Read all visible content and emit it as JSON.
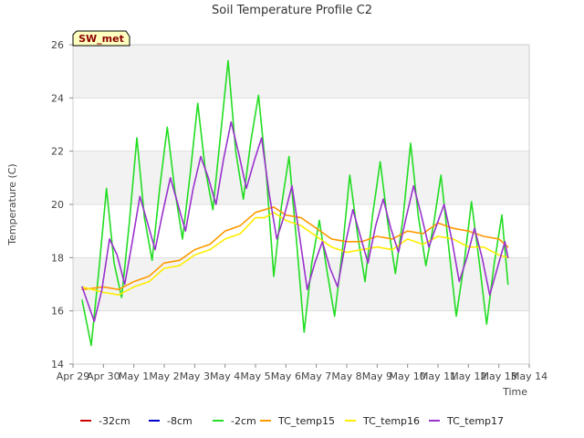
{
  "chart_data": {
    "type": "line",
    "title": "Soil Temperature Profile C2",
    "xlabel": "Time",
    "ylabel": "Temperature (C)",
    "ylim": [
      14,
      26
    ],
    "xlim": [
      0,
      15
    ],
    "grid": "horizontal bands",
    "legend_position": "bottom",
    "station_badge": "SW_met",
    "colors": {
      "-32cm": "#cc0000",
      "-8cm": "#0000cc",
      "-2cm": "#22dd22",
      "TC_temp15": "#ff9900",
      "TC_temp16": "#ffee00",
      "TC_temp17": "#9933cc"
    },
    "x_ticks": [
      {
        "value": 0,
        "label": "Apr 29"
      },
      {
        "value": 1,
        "label": "Apr 30"
      },
      {
        "value": 2,
        "label": "May 1"
      },
      {
        "value": 3,
        "label": "May 2"
      },
      {
        "value": 4,
        "label": "May 3"
      },
      {
        "value": 5,
        "label": "May 4"
      },
      {
        "value": 6,
        "label": "May 5"
      },
      {
        "value": 7,
        "label": "May 6"
      },
      {
        "value": 8,
        "label": "May 7"
      },
      {
        "value": 9,
        "label": "May 8"
      },
      {
        "value": 10,
        "label": "May 9"
      },
      {
        "value": 11,
        "label": "May 10"
      },
      {
        "value": 12,
        "label": "May 11"
      },
      {
        "value": 13,
        "label": "May 12"
      },
      {
        "value": 14,
        "label": "May 13"
      },
      {
        "value": 15,
        "label": "May 14"
      }
    ],
    "y_ticks": [
      14,
      16,
      18,
      20,
      22,
      24,
      26
    ],
    "legend": [
      "-32cm",
      "-8cm",
      "-2cm",
      "TC_temp15",
      "TC_temp16",
      "TC_temp17"
    ],
    "series": [
      {
        "name": "-32cm",
        "x": [],
        "values": []
      },
      {
        "name": "-8cm",
        "x": [],
        "values": []
      },
      {
        "name": "-2cm",
        "x": [
          0.3,
          0.6,
          0.85,
          1.1,
          1.35,
          1.6,
          1.85,
          2.1,
          2.35,
          2.6,
          2.85,
          3.1,
          3.35,
          3.6,
          3.85,
          4.1,
          4.35,
          4.6,
          4.85,
          5.1,
          5.35,
          5.6,
          5.85,
          6.1,
          6.35,
          6.6,
          6.85,
          7.1,
          7.35,
          7.6,
          7.85,
          8.1,
          8.35,
          8.6,
          8.85,
          9.1,
          9.35,
          9.6,
          9.85,
          10.1,
          10.35,
          10.6,
          10.85,
          11.1,
          11.35,
          11.6,
          11.85,
          12.1,
          12.35,
          12.6,
          12.85,
          13.1,
          13.35,
          13.6,
          13.85,
          14.1,
          14.3
        ],
        "values": [
          16.4,
          14.7,
          17.5,
          20.6,
          17.8,
          16.5,
          19.3,
          22.5,
          19.5,
          17.9,
          20.6,
          22.9,
          20.5,
          18.7,
          21.1,
          23.8,
          21.3,
          19.8,
          22.6,
          25.4,
          22.0,
          20.2,
          22.4,
          24.1,
          21.2,
          17.3,
          19.9,
          21.8,
          18.6,
          15.2,
          17.8,
          19.4,
          17.5,
          15.8,
          18.2,
          21.1,
          18.9,
          17.1,
          19.6,
          21.6,
          19.3,
          17.4,
          19.5,
          22.3,
          19.6,
          17.7,
          19.2,
          21.1,
          18.4,
          15.8,
          17.7,
          20.1,
          17.9,
          15.5,
          17.8,
          19.6,
          17.0
        ]
      },
      {
        "name": "TC_temp15",
        "x": [
          0.3,
          1.0,
          1.5,
          2.0,
          2.5,
          3.0,
          3.5,
          4.0,
          4.5,
          5.0,
          5.5,
          6.0,
          6.3,
          6.6,
          7.0,
          7.5,
          8.0,
          8.5,
          9.0,
          9.5,
          10.0,
          10.5,
          11.0,
          11.5,
          12.0,
          12.5,
          13.0,
          13.5,
          14.0,
          14.3
        ],
        "values": [
          16.8,
          16.9,
          16.8,
          17.1,
          17.3,
          17.8,
          17.9,
          18.3,
          18.5,
          19.0,
          19.2,
          19.7,
          19.8,
          19.9,
          19.6,
          19.5,
          19.1,
          18.7,
          18.6,
          18.6,
          18.8,
          18.7,
          19.0,
          18.9,
          19.3,
          19.1,
          19.0,
          18.8,
          18.7,
          18.4
        ]
      },
      {
        "name": "TC_temp16",
        "x": [
          0.3,
          1.0,
          1.5,
          2.0,
          2.5,
          3.0,
          3.5,
          4.0,
          4.5,
          5.0,
          5.5,
          6.0,
          6.3,
          6.6,
          7.0,
          7.5,
          8.0,
          8.5,
          9.0,
          9.5,
          10.0,
          10.5,
          11.0,
          11.5,
          12.0,
          12.5,
          13.0,
          13.5,
          14.0,
          14.3
        ],
        "values": [
          16.9,
          16.7,
          16.6,
          16.9,
          17.1,
          17.6,
          17.7,
          18.1,
          18.3,
          18.7,
          18.9,
          19.5,
          19.5,
          19.7,
          19.4,
          19.2,
          18.8,
          18.4,
          18.2,
          18.3,
          18.4,
          18.3,
          18.7,
          18.5,
          18.8,
          18.7,
          18.4,
          18.4,
          18.1,
          18.0
        ]
      },
      {
        "name": "TC_temp17",
        "x": [
          0.3,
          0.7,
          0.95,
          1.2,
          1.45,
          1.7,
          1.95,
          2.2,
          2.45,
          2.7,
          2.95,
          3.2,
          3.45,
          3.7,
          3.95,
          4.2,
          4.45,
          4.7,
          4.95,
          5.2,
          5.45,
          5.7,
          5.95,
          6.2,
          6.45,
          6.7,
          6.95,
          7.2,
          7.45,
          7.7,
          7.95,
          8.2,
          8.45,
          8.7,
          8.95,
          9.2,
          9.45,
          9.7,
          9.95,
          10.2,
          10.45,
          10.7,
          10.95,
          11.2,
          11.45,
          11.7,
          11.95,
          12.2,
          12.45,
          12.7,
          12.95,
          13.2,
          13.45,
          13.7,
          13.95,
          14.2,
          14.3
        ],
        "values": [
          16.9,
          15.6,
          16.8,
          18.7,
          18.1,
          17.0,
          18.6,
          20.3,
          19.3,
          18.3,
          19.7,
          21.0,
          20.0,
          19.0,
          20.6,
          21.8,
          21.0,
          20.0,
          21.7,
          23.1,
          21.9,
          20.6,
          21.6,
          22.5,
          20.4,
          18.7,
          19.6,
          20.7,
          18.8,
          16.8,
          17.8,
          18.6,
          17.6,
          16.9,
          18.5,
          19.8,
          18.8,
          17.8,
          19.2,
          20.2,
          19.1,
          18.2,
          19.5,
          20.7,
          19.6,
          18.4,
          19.2,
          20.0,
          18.7,
          17.1,
          18.0,
          19.1,
          18.0,
          16.6,
          17.6,
          18.6,
          18.0
        ]
      }
    ]
  }
}
